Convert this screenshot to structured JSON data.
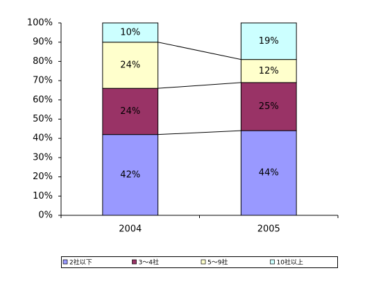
{
  "chart_data": {
    "type": "stacked-bar",
    "categories": [
      "2004",
      "2005"
    ],
    "series": [
      {
        "name": "2社以下",
        "color": "#9999ff",
        "values": [
          42,
          44
        ],
        "value_labels": [
          "42%",
          "44%"
        ]
      },
      {
        "name": "3～4社",
        "color": "#993366",
        "values": [
          24,
          25
        ],
        "value_labels": [
          "24%",
          "25%"
        ]
      },
      {
        "name": "5～9社",
        "color": "#ffffcc",
        "values": [
          24,
          12
        ],
        "value_labels": [
          "24%",
          "12%"
        ]
      },
      {
        "name": "10社以上",
        "color": "#ccffff",
        "values": [
          10,
          19
        ],
        "value_labels": [
          "10%",
          "19%"
        ]
      }
    ],
    "ylim": [
      0,
      100
    ],
    "yticks": [
      {
        "value": 0,
        "label": "0%"
      },
      {
        "value": 10,
        "label": "10%"
      },
      {
        "value": 20,
        "label": "20%"
      },
      {
        "value": 30,
        "label": "30%"
      },
      {
        "value": 40,
        "label": "40%"
      },
      {
        "value": 50,
        "label": "50%"
      },
      {
        "value": 60,
        "label": "60%"
      },
      {
        "value": 70,
        "label": "70%"
      },
      {
        "value": 80,
        "label": "80%"
      },
      {
        "value": 90,
        "label": "90%"
      },
      {
        "value": 100,
        "label": "100%"
      }
    ],
    "legend": "bottom"
  }
}
